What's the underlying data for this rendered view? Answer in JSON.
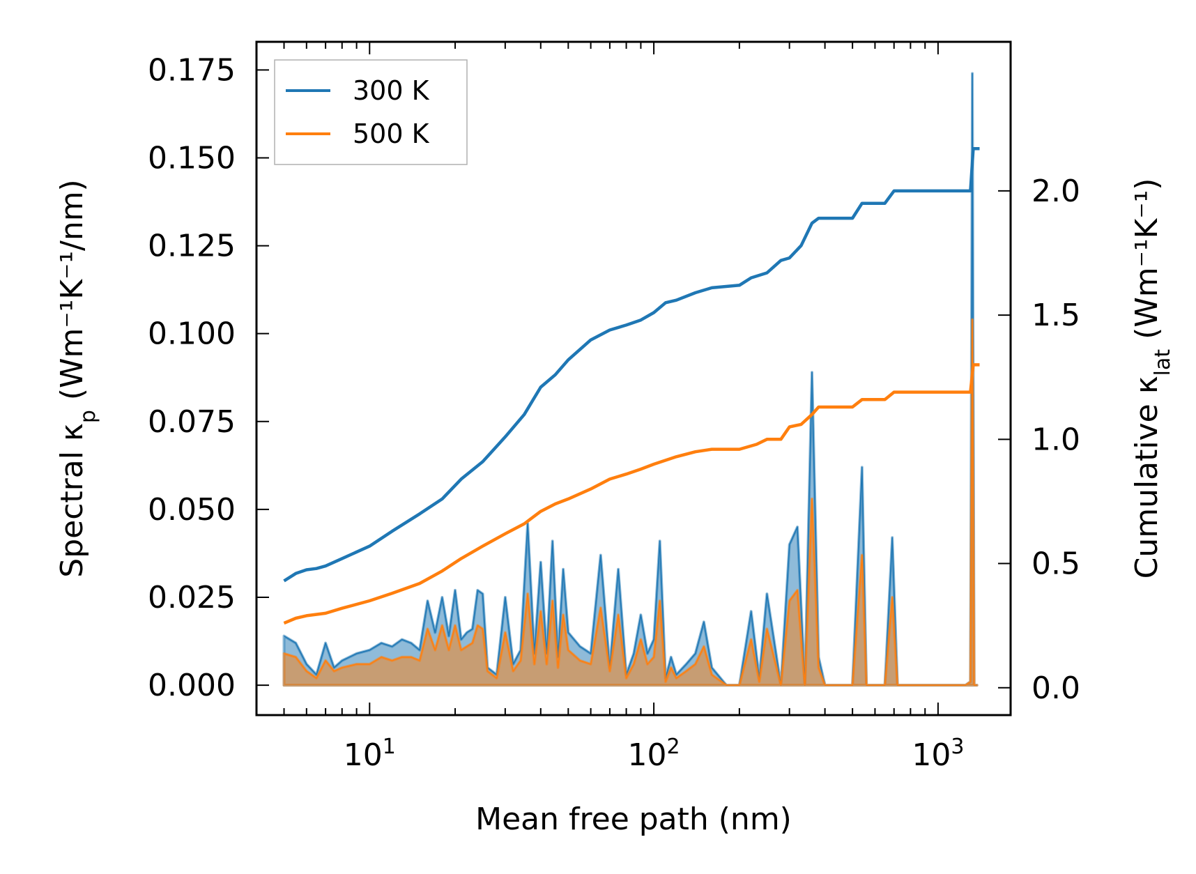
{
  "chart_data": {
    "type": "line",
    "xscale": "log",
    "xlabel": "Mean free path (nm)",
    "ylabel_left": "Spectral κ",
    "ylabel_left_sub": "p",
    "ylabel_left_units": " (Wm⁻¹K⁻¹/nm)",
    "ylabel_right": "Cumulative κ",
    "ylabel_right_sub": "lat",
    "ylabel_right_units": " (Wm⁻¹K⁻¹)",
    "xlim": [
      4,
      1800
    ],
    "ylim_left": [
      -0.0085,
      0.183
    ],
    "ylim_right": [
      -0.11,
      2.6
    ],
    "xticks": [
      {
        "value": 10,
        "base": "10",
        "exp": "1"
      },
      {
        "value": 100,
        "base": "10",
        "exp": "2"
      },
      {
        "value": 1000,
        "base": "10",
        "exp": "3"
      }
    ],
    "yticks_left": [
      "0.000",
      "0.025",
      "0.050",
      "0.075",
      "0.100",
      "0.125",
      "0.150",
      "0.175"
    ],
    "yticks_right": [
      "0.0",
      "0.5",
      "1.0",
      "1.5",
      "2.0"
    ],
    "legend": {
      "position": "top-left",
      "entries": [
        "300 K",
        "500 K"
      ]
    },
    "series": [
      {
        "name": "300 K",
        "color": "#1f77b4",
        "cumulative": {
          "x": [
            5,
            5.5,
            6,
            6.5,
            7,
            8,
            10,
            12,
            15,
            18,
            21,
            25,
            30,
            35,
            40,
            45,
            50,
            60,
            70,
            80,
            90,
            100,
            110,
            120,
            140,
            160,
            200,
            220,
            250,
            280,
            300,
            330,
            360,
            380,
            500,
            540,
            650,
            700,
            1300,
            1330,
            1400
          ],
          "y": [
            0.43,
            0.46,
            0.475,
            0.48,
            0.49,
            0.52,
            0.57,
            0.63,
            0.7,
            0.76,
            0.84,
            0.91,
            1.01,
            1.1,
            1.21,
            1.26,
            1.32,
            1.4,
            1.44,
            1.46,
            1.48,
            1.51,
            1.55,
            1.56,
            1.59,
            1.61,
            1.62,
            1.65,
            1.67,
            1.72,
            1.73,
            1.78,
            1.87,
            1.89,
            1.89,
            1.95,
            1.95,
            2.0,
            2.0,
            2.17,
            2.17
          ]
        },
        "spectral": {
          "x": [
            5,
            5.5,
            6,
            6.5,
            7,
            7.5,
            8,
            9,
            10,
            11,
            12,
            13,
            14,
            15,
            16,
            17,
            18,
            19,
            20,
            21,
            22,
            23,
            24,
            25,
            26,
            28,
            30,
            32,
            34,
            36,
            38,
            40,
            42,
            44,
            46,
            48,
            50,
            55,
            60,
            65,
            70,
            75,
            80,
            85,
            90,
            95,
            100,
            105,
            110,
            115,
            120,
            130,
            140,
            150,
            160,
            180,
            200,
            220,
            235,
            250,
            280,
            300,
            320,
            340,
            360,
            380,
            400,
            500,
            540,
            560,
            650,
            690,
            720,
            1250,
            1300,
            1320,
            1340,
            1370
          ],
          "y": [
            0.014,
            0.012,
            0.006,
            0.003,
            0.012,
            0.005,
            0.007,
            0.009,
            0.01,
            0.012,
            0.011,
            0.013,
            0.012,
            0.01,
            0.024,
            0.015,
            0.025,
            0.014,
            0.027,
            0.013,
            0.015,
            0.016,
            0.027,
            0.026,
            0.005,
            0.003,
            0.025,
            0.006,
            0.01,
            0.046,
            0.009,
            0.035,
            0.009,
            0.041,
            0.008,
            0.033,
            0.015,
            0.011,
            0.009,
            0.037,
            0.005,
            0.033,
            0.003,
            0.009,
            0.02,
            0.009,
            0.013,
            0.041,
            0.002,
            0.008,
            0.003,
            0.006,
            0.009,
            0.018,
            0.005,
            0.0,
            0.0,
            0.021,
            0.002,
            0.026,
            0.0,
            0.04,
            0.045,
            0.0,
            0.089,
            0.008,
            0.0,
            0.0,
            0.062,
            0.0,
            0.0,
            0.042,
            0.0,
            0.0,
            0.001,
            0.174,
            0.0,
            0.0
          ]
        }
      },
      {
        "name": "500 K",
        "color": "#ff7f0e",
        "cumulative": {
          "x": [
            5,
            5.5,
            6,
            7,
            8,
            10,
            12,
            15,
            18,
            21,
            25,
            30,
            35,
            40,
            45,
            50,
            60,
            70,
            80,
            90,
            100,
            120,
            140,
            160,
            200,
            230,
            250,
            280,
            300,
            330,
            360,
            380,
            500,
            540,
            650,
            700,
            1300,
            1330,
            1400
          ],
          "y": [
            0.26,
            0.28,
            0.29,
            0.3,
            0.32,
            0.35,
            0.38,
            0.42,
            0.47,
            0.52,
            0.57,
            0.62,
            0.66,
            0.71,
            0.74,
            0.76,
            0.8,
            0.84,
            0.86,
            0.88,
            0.9,
            0.93,
            0.95,
            0.96,
            0.96,
            0.98,
            1.0,
            1.0,
            1.05,
            1.06,
            1.1,
            1.13,
            1.13,
            1.16,
            1.16,
            1.19,
            1.19,
            1.3,
            1.3
          ]
        },
        "spectral": {
          "x": [
            5,
            5.5,
            6,
            6.5,
            7,
            7.5,
            8,
            9,
            10,
            11,
            12,
            13,
            14,
            15,
            16,
            17,
            18,
            19,
            20,
            21,
            22,
            23,
            24,
            25,
            26,
            28,
            30,
            32,
            34,
            36,
            38,
            40,
            42,
            44,
            46,
            48,
            50,
            55,
            60,
            65,
            70,
            75,
            80,
            85,
            90,
            95,
            100,
            105,
            110,
            115,
            120,
            130,
            140,
            150,
            160,
            180,
            200,
            220,
            235,
            250,
            280,
            300,
            320,
            340,
            360,
            380,
            400,
            500,
            540,
            560,
            650,
            690,
            720,
            1250,
            1300,
            1320,
            1340,
            1370
          ],
          "y": [
            0.009,
            0.008,
            0.004,
            0.002,
            0.007,
            0.004,
            0.005,
            0.006,
            0.006,
            0.008,
            0.007,
            0.008,
            0.008,
            0.007,
            0.016,
            0.01,
            0.017,
            0.01,
            0.017,
            0.01,
            0.011,
            0.012,
            0.017,
            0.016,
            0.004,
            0.002,
            0.015,
            0.004,
            0.007,
            0.026,
            0.006,
            0.021,
            0.006,
            0.024,
            0.005,
            0.02,
            0.01,
            0.007,
            0.006,
            0.022,
            0.004,
            0.02,
            0.002,
            0.006,
            0.013,
            0.006,
            0.008,
            0.024,
            0.001,
            0.005,
            0.002,
            0.004,
            0.006,
            0.011,
            0.003,
            0.0,
            0.0,
            0.013,
            0.001,
            0.016,
            0.0,
            0.024,
            0.027,
            0.0,
            0.053,
            0.005,
            0.0,
            0.0,
            0.037,
            0.0,
            0.0,
            0.025,
            0.0,
            0.0,
            0.001,
            0.104,
            0.0,
            0.0
          ]
        }
      }
    ]
  }
}
